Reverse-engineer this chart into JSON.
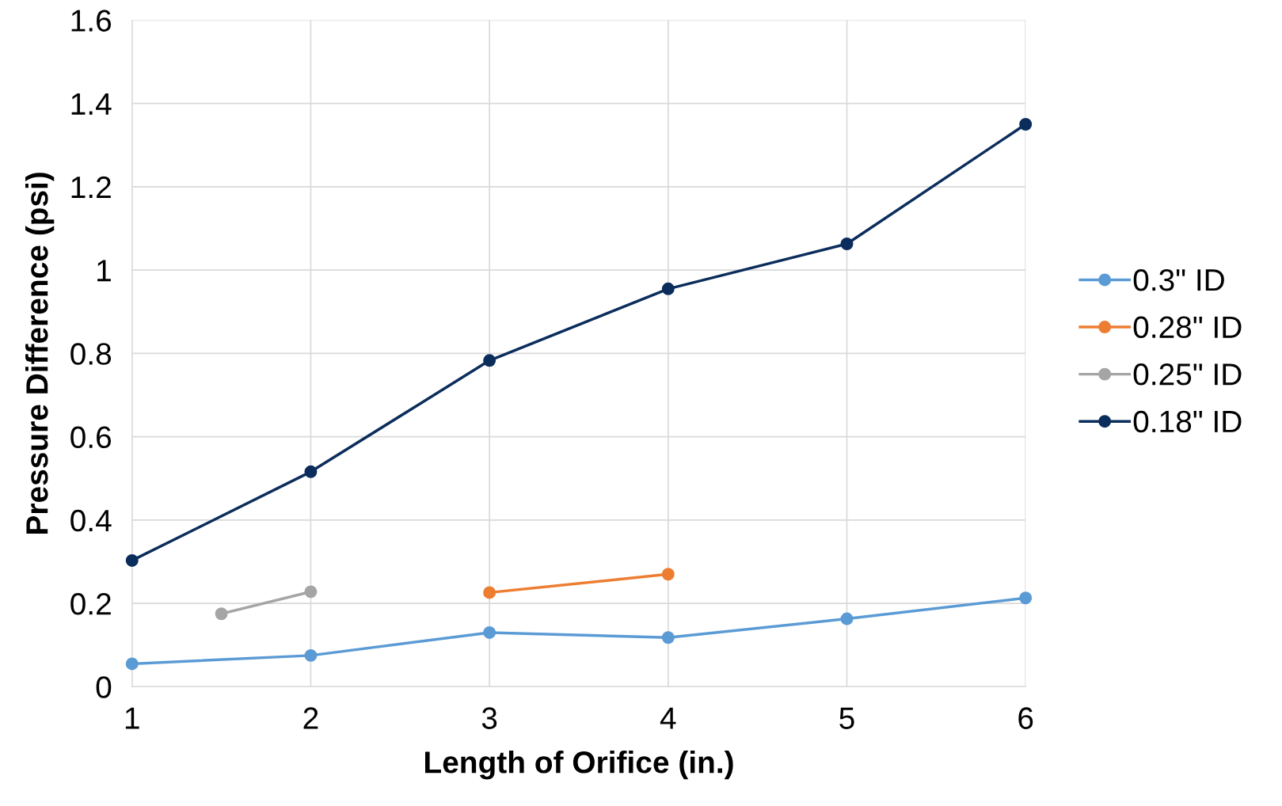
{
  "chart_data": {
    "type": "line",
    "xlabel": "Length of Orifice (in.)",
    "ylabel": "Pressure Difference (psi)",
    "xlim": [
      1,
      6
    ],
    "xticks": [
      1,
      2,
      3,
      4,
      5,
      6
    ],
    "ylim": [
      0,
      1.6
    ],
    "yticks": [
      0,
      0.2,
      0.4,
      0.6,
      0.8,
      1,
      1.2,
      1.4,
      1.6
    ],
    "grid": true,
    "legend": "right",
    "marker": "circle",
    "line_style": "solid",
    "series": [
      {
        "name": "0.3\" ID",
        "color": "#5b9bd5",
        "x": [
          1,
          2,
          3,
          4,
          5,
          6
        ],
        "values": [
          0.055,
          0.075,
          0.13,
          0.118,
          0.163,
          0.213
        ]
      },
      {
        "name": "0.28\" ID",
        "color": "#ed7d31",
        "x": [
          3,
          4
        ],
        "values": [
          0.226,
          0.27
        ]
      },
      {
        "name": "0.25\" ID",
        "color": "#a5a5a5",
        "x": [
          1.5,
          2
        ],
        "values": [
          0.175,
          0.228
        ]
      },
      {
        "name": "0.18\" ID",
        "color": "#0b2d5c",
        "x": [
          1,
          2,
          3,
          4,
          5,
          6
        ],
        "values": [
          0.303,
          0.516,
          0.783,
          0.955,
          1.063,
          1.35
        ]
      }
    ]
  }
}
